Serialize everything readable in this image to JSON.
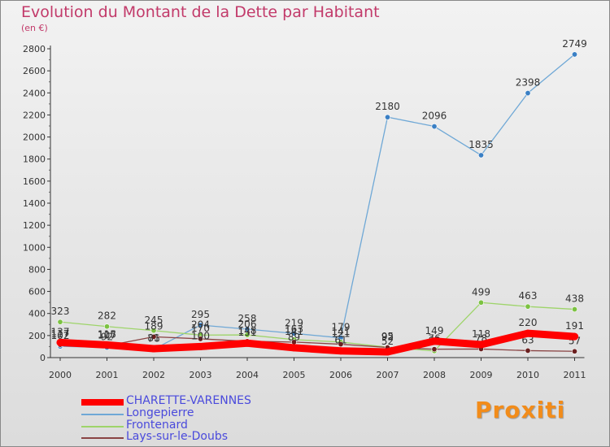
{
  "header": {
    "title": "Evolution du Montant de la Dette par Habitant",
    "subtitle": "(en €)"
  },
  "logo": {
    "text": "Proxiti"
  },
  "chart_data": {
    "type": "line",
    "x": [
      "2000",
      "2001",
      "2002",
      "2003",
      "2004",
      "2005",
      "2006",
      "2007",
      "2008",
      "2009",
      "2010",
      "2011"
    ],
    "ylim": [
      0,
      2800
    ],
    "yticks": [
      0,
      200,
      400,
      600,
      800,
      1000,
      1200,
      1400,
      1600,
      1800,
      2000,
      2200,
      2400,
      2600,
      2800
    ],
    "grid": false,
    "legend": "bottom-left",
    "series": [
      {
        "name": "Longepierre",
        "color": "#6fa8d6",
        "marker": "#3a7fc4",
        "values": [
          102,
          92,
          76,
          295,
          258,
          219,
          179,
          2180,
          2096,
          1835,
          2398,
          2749
        ],
        "labels": [
          "102",
          "92",
          "76",
          "295",
          "258",
          "219",
          "179",
          "2180",
          "2096",
          "1835",
          "2398",
          "2749"
        ]
      },
      {
        "name": "Frontenard",
        "color": "#9ed46a",
        "marker": "#7cc242",
        "values": [
          323,
          282,
          245,
          204,
          206,
          163,
          141,
          95,
          60,
          499,
          463,
          438
        ],
        "labels": [
          "323",
          "282",
          "245",
          "204",
          "206",
          "163",
          "141",
          "95",
          "60",
          "499",
          "463",
          "438"
        ]
      },
      {
        "name": "Lays-sur-le-Doubs",
        "color": "#8a4444",
        "marker": "#6b1f1f",
        "values": [
          117,
          107,
          189,
          170,
          148,
          141,
          121,
          92,
          76,
          78,
          63,
          57
        ],
        "labels": [
          "117",
          "107",
          "189",
          "170",
          "148",
          "141",
          "121",
          "92",
          "76",
          "78",
          "63",
          "57"
        ]
      },
      {
        "name": "CHARETTE-VARENNES",
        "color": "#ff0000",
        "marker": "#ff0000",
        "values": [
          137,
          115,
          81,
          100,
          131,
          89,
          61,
          52,
          149,
          118,
          220,
          191
        ],
        "labels": [
          "137",
          "115",
          "81",
          "100",
          "131",
          "89",
          "61",
          "52",
          "149",
          "118",
          "220",
          "191"
        ]
      }
    ]
  }
}
